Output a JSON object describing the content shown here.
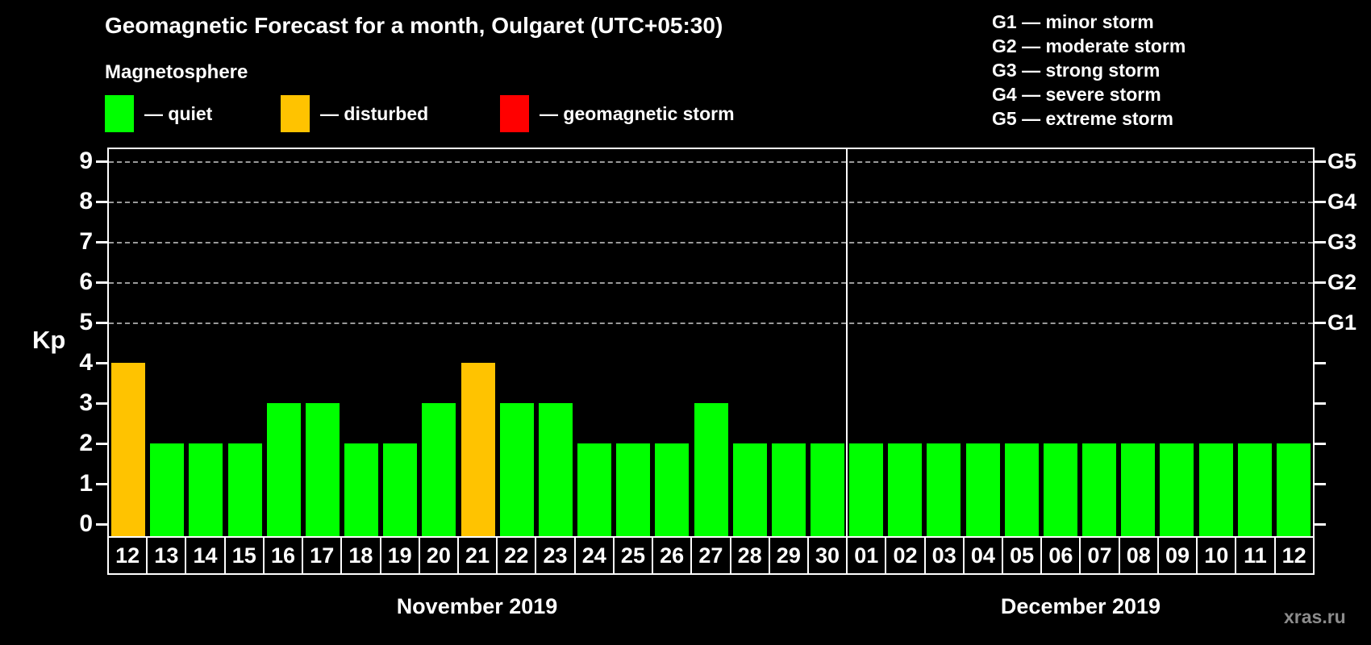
{
  "title": "Geomagnetic Forecast for a month, Oulgaret (UTC+05:30)",
  "subtitle": "Magnetosphere",
  "legend": {
    "items": [
      {
        "key": "quiet",
        "label": "— quiet",
        "color": "#00ff00"
      },
      {
        "key": "disturbed",
        "label": "— disturbed",
        "color": "#ffc300"
      },
      {
        "key": "storm",
        "label": "— geomagnetic storm",
        "color": "#ff0000"
      }
    ]
  },
  "storm_scale": [
    "G1 — minor storm",
    "G2 — moderate storm",
    "G3 — strong storm",
    "G4 — severe storm",
    "G5 — extreme storm"
  ],
  "watermark": "xras.ru",
  "chart_data": {
    "type": "bar",
    "ylabel": "Kp",
    "ylim": [
      0,
      9
    ],
    "yticks": [
      0,
      1,
      2,
      3,
      4,
      5,
      6,
      7,
      8,
      9
    ],
    "gridlines_kp": [
      5,
      6,
      7,
      8,
      9
    ],
    "grid": "dashed horizontal at G-storm levels",
    "legend_position": "top",
    "right_axis": [
      {
        "label": "G1",
        "kp": 5
      },
      {
        "label": "G2",
        "kp": 6
      },
      {
        "label": "G3",
        "kp": 7
      },
      {
        "label": "G4",
        "kp": 8
      },
      {
        "label": "G5",
        "kp": 9
      }
    ],
    "colors": {
      "quiet": "#00ff00",
      "disturbed": "#ffc300",
      "storm": "#ff0000"
    },
    "months": [
      {
        "label": "November 2019",
        "days": [
          {
            "date": "12",
            "kp": 4,
            "status": "disturbed"
          },
          {
            "date": "13",
            "kp": 2,
            "status": "quiet"
          },
          {
            "date": "14",
            "kp": 2,
            "status": "quiet"
          },
          {
            "date": "15",
            "kp": 2,
            "status": "quiet"
          },
          {
            "date": "16",
            "kp": 3,
            "status": "quiet"
          },
          {
            "date": "17",
            "kp": 3,
            "status": "quiet"
          },
          {
            "date": "18",
            "kp": 2,
            "status": "quiet"
          },
          {
            "date": "19",
            "kp": 2,
            "status": "quiet"
          },
          {
            "date": "20",
            "kp": 3,
            "status": "quiet"
          },
          {
            "date": "21",
            "kp": 4,
            "status": "disturbed"
          },
          {
            "date": "22",
            "kp": 3,
            "status": "quiet"
          },
          {
            "date": "23",
            "kp": 3,
            "status": "quiet"
          },
          {
            "date": "24",
            "kp": 2,
            "status": "quiet"
          },
          {
            "date": "25",
            "kp": 2,
            "status": "quiet"
          },
          {
            "date": "26",
            "kp": 2,
            "status": "quiet"
          },
          {
            "date": "27",
            "kp": 3,
            "status": "quiet"
          },
          {
            "date": "28",
            "kp": 2,
            "status": "quiet"
          },
          {
            "date": "29",
            "kp": 2,
            "status": "quiet"
          },
          {
            "date": "30",
            "kp": 2,
            "status": "quiet"
          }
        ]
      },
      {
        "label": "December 2019",
        "days": [
          {
            "date": "01",
            "kp": 2,
            "status": "quiet"
          },
          {
            "date": "02",
            "kp": 2,
            "status": "quiet"
          },
          {
            "date": "03",
            "kp": 2,
            "status": "quiet"
          },
          {
            "date": "04",
            "kp": 2,
            "status": "quiet"
          },
          {
            "date": "05",
            "kp": 2,
            "status": "quiet"
          },
          {
            "date": "06",
            "kp": 2,
            "status": "quiet"
          },
          {
            "date": "07",
            "kp": 2,
            "status": "quiet"
          },
          {
            "date": "08",
            "kp": 2,
            "status": "quiet"
          },
          {
            "date": "09",
            "kp": 2,
            "status": "quiet"
          },
          {
            "date": "10",
            "kp": 2,
            "status": "quiet"
          },
          {
            "date": "11",
            "kp": 2,
            "status": "quiet"
          },
          {
            "date": "12",
            "kp": 2,
            "status": "quiet"
          }
        ]
      }
    ]
  }
}
